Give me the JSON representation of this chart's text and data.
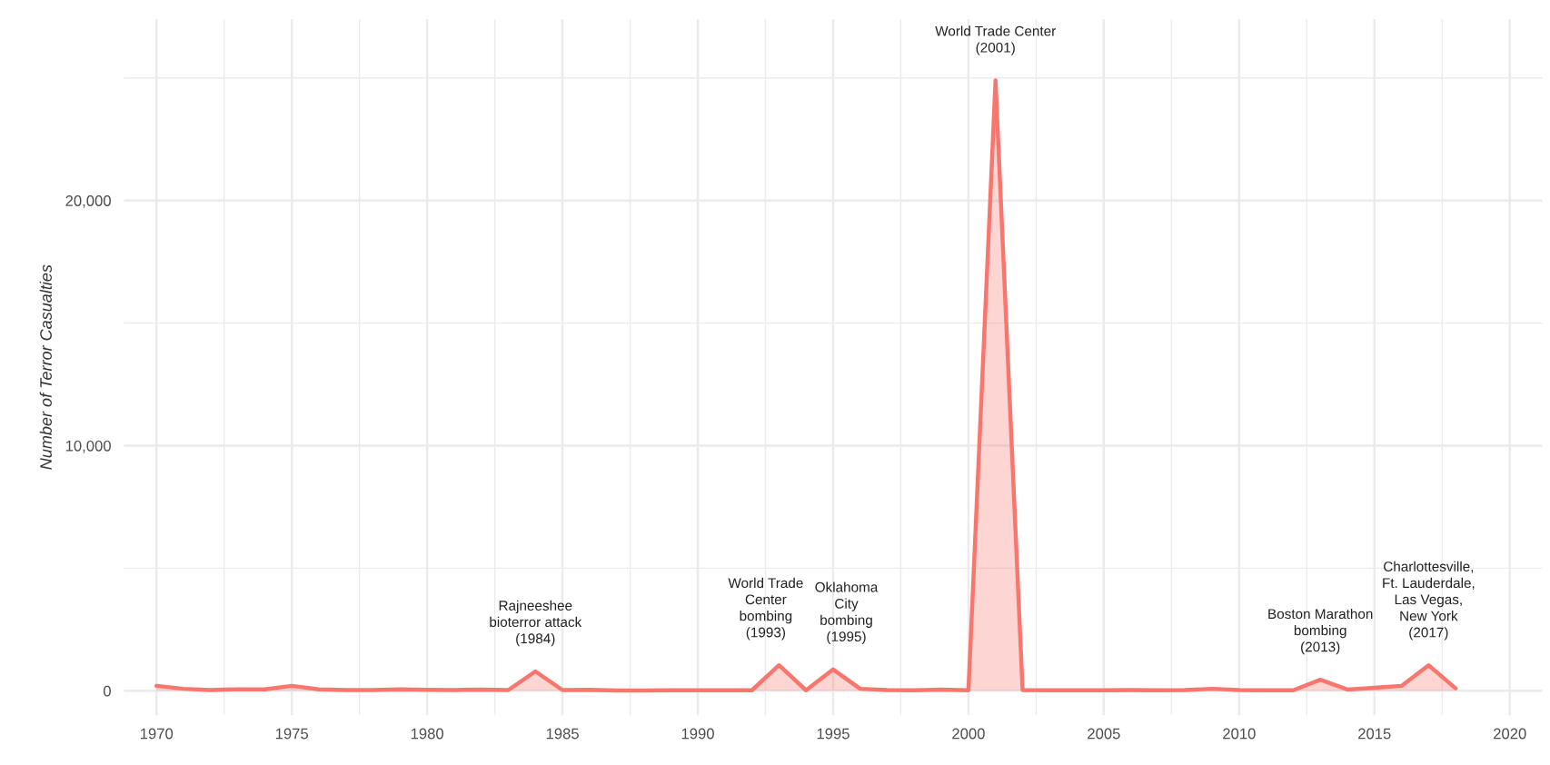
{
  "chart_data": {
    "type": "area",
    "ylabel": "Number of Terror Casualties",
    "x": [
      1970,
      1971,
      1972,
      1973,
      1974,
      1975,
      1976,
      1977,
      1978,
      1979,
      1980,
      1981,
      1982,
      1983,
      1984,
      1985,
      1986,
      1987,
      1988,
      1989,
      1990,
      1991,
      1992,
      1993,
      1994,
      1995,
      1996,
      1997,
      1998,
      1999,
      2000,
      2001,
      2002,
      2003,
      2004,
      2005,
      2006,
      2007,
      2008,
      2009,
      2010,
      2011,
      2012,
      2013,
      2014,
      2015,
      2016,
      2017,
      2018
    ],
    "series": [
      {
        "color": "#f8766d",
        "values": [
          200,
          80,
          30,
          60,
          60,
          200,
          60,
          30,
          30,
          60,
          40,
          30,
          50,
          30,
          790,
          30,
          40,
          10,
          10,
          20,
          20,
          20,
          20,
          1040,
          20,
          870,
          80,
          30,
          20,
          50,
          20,
          24900,
          30,
          20,
          20,
          20,
          30,
          20,
          30,
          80,
          30,
          20,
          20,
          450,
          50,
          120,
          200,
          1040,
          100
        ]
      }
    ],
    "xlim": [
      1968.8,
      2021.2
    ],
    "ylim": [
      -1000,
      27400
    ],
    "xticks": [
      1970,
      1975,
      1980,
      1985,
      1990,
      1995,
      2000,
      2005,
      2010,
      2015,
      2020
    ],
    "yticks": [
      {
        "value": 0,
        "label": "0"
      },
      {
        "value": 10000,
        "label": "10,000"
      },
      {
        "value": 20000,
        "label": "20,000"
      }
    ],
    "grid": true,
    "annotations": [
      {
        "text": "Rajneeshee\nbioterror attack\n(1984)",
        "x": 1984,
        "y": 790
      },
      {
        "text": "World Trade\nCenter\nbombing\n(1993)",
        "x": 1993,
        "y": 1040
      },
      {
        "text": "Oklahoma\nCity\nbombing\n(1995)",
        "x": 1995,
        "y": 870
      },
      {
        "text": "World Trade Center\n(2001)",
        "x": 2001,
        "y": 24900
      },
      {
        "text": "Boston Marathon\nbombing\n(2013)",
        "x": 2013,
        "y": 450
      },
      {
        "text": "Charlottesville,\nFt. Lauderdale,\nLas Vegas,\nNew York\n(2017)",
        "x": 2017,
        "y": 1040
      }
    ]
  }
}
